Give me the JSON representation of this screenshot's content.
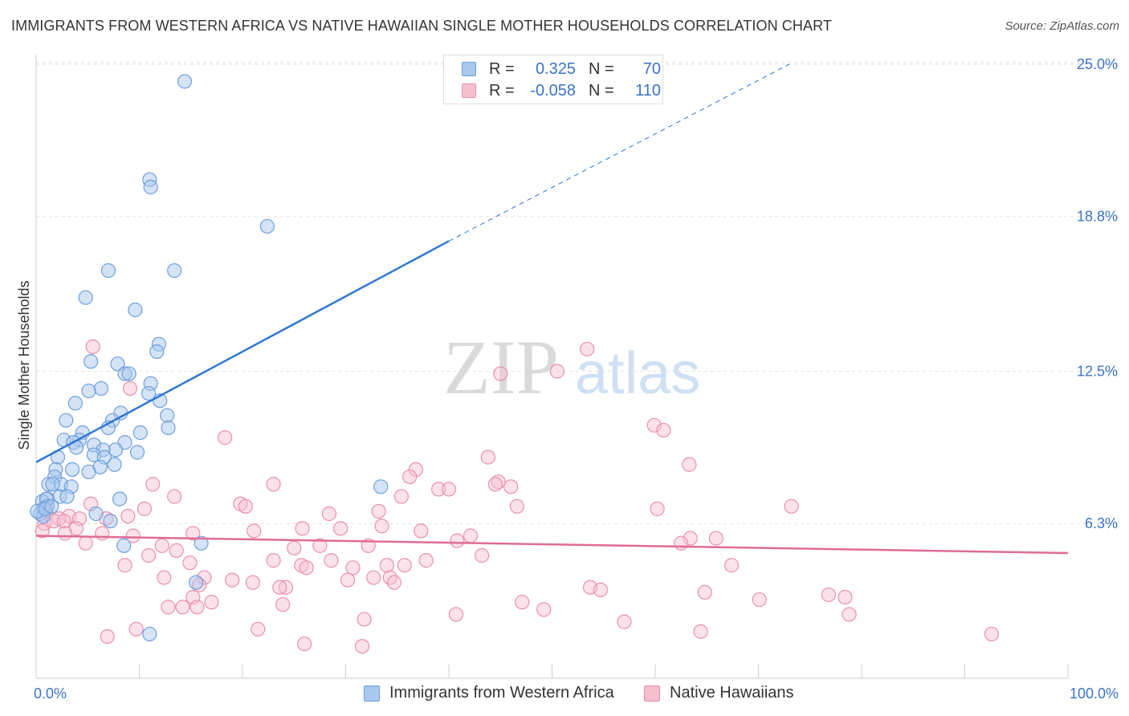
{
  "header": {
    "title": "IMMIGRANTS FROM WESTERN AFRICA VS NATIVE HAWAIIAN SINGLE MOTHER HOUSEHOLDS CORRELATION CHART",
    "source": "Source: ZipAtlas.com"
  },
  "legend": {
    "blue": {
      "r_label": "R =",
      "r_value": "0.325",
      "n_label": "N =",
      "n_value": "70"
    },
    "pink": {
      "r_label": "R =",
      "r_value": "-0.058",
      "n_label": "N =",
      "n_value": "110"
    }
  },
  "bottom_legend": {
    "blue_label": "Immigrants from Western Africa",
    "pink_label": "Native Hawaiians"
  },
  "watermark": {
    "zip": "ZIP",
    "atlas": "atlas"
  },
  "colors": {
    "blue_fill": "#aac8ee",
    "blue_stroke": "#6f9fdc",
    "blue_line": "#2f77d0",
    "pink_fill": "#f6bfd0",
    "pink_stroke": "#ea8fae",
    "pink_line": "#e06b96",
    "axis_label": "#3b73c7",
    "grid": "#e2e2e2"
  },
  "chart_data": {
    "type": "scatter",
    "title": "IMMIGRANTS FROM WESTERN AFRICA VS NATIVE HAWAIIAN SINGLE MOTHER HOUSEHOLDS CORRELATION CHART",
    "xlabel": "",
    "ylabel": "Single Mother Households",
    "xlim": [
      0,
      100
    ],
    "ylim": [
      0,
      26
    ],
    "x_tick_labels": [
      "0.0%",
      "100.0%"
    ],
    "y_ticks": [
      6.3,
      12.5,
      18.8,
      25.0
    ],
    "y_tick_labels": [
      "6.3%",
      "12.5%",
      "18.8%",
      "25.0%"
    ],
    "grid": true,
    "legend_position": "top-center",
    "series": [
      {
        "name": "Immigrants from Western Africa",
        "color": "#6f9fdc",
        "r": 0.325,
        "n": 70,
        "trend": {
          "x": [
            0,
            40
          ],
          "y": [
            8.8,
            17.8
          ],
          "dashed_to": [
            73,
            25.0
          ]
        },
        "points": [
          [
            14.4,
            24.3
          ],
          [
            11.0,
            20.3
          ],
          [
            11.1,
            20.0
          ],
          [
            22.4,
            18.4
          ],
          [
            7.0,
            16.6
          ],
          [
            13.4,
            16.6
          ],
          [
            4.8,
            15.5
          ],
          [
            9.6,
            15.0
          ],
          [
            11.9,
            13.6
          ],
          [
            11.7,
            13.3
          ],
          [
            5.3,
            12.9
          ],
          [
            7.9,
            12.8
          ],
          [
            8.6,
            12.4
          ],
          [
            9.0,
            12.4
          ],
          [
            11.1,
            12.0
          ],
          [
            6.3,
            11.8
          ],
          [
            5.1,
            11.7
          ],
          [
            10.9,
            11.6
          ],
          [
            3.8,
            11.2
          ],
          [
            12.0,
            11.3
          ],
          [
            8.2,
            10.8
          ],
          [
            12.7,
            10.7
          ],
          [
            2.9,
            10.5
          ],
          [
            7.4,
            10.5
          ],
          [
            12.8,
            10.2
          ],
          [
            7.0,
            10.2
          ],
          [
            10.1,
            10.0
          ],
          [
            4.5,
            10.0
          ],
          [
            2.7,
            9.7
          ],
          [
            4.2,
            9.7
          ],
          [
            3.6,
            9.6
          ],
          [
            5.6,
            9.5
          ],
          [
            3.9,
            9.4
          ],
          [
            8.6,
            9.6
          ],
          [
            7.7,
            9.3
          ],
          [
            6.5,
            9.3
          ],
          [
            5.6,
            9.1
          ],
          [
            9.8,
            9.2
          ],
          [
            6.6,
            9.0
          ],
          [
            2.1,
            9.0
          ],
          [
            7.6,
            8.7
          ],
          [
            6.2,
            8.6
          ],
          [
            1.9,
            8.5
          ],
          [
            3.5,
            8.5
          ],
          [
            5.1,
            8.4
          ],
          [
            1.8,
            8.2
          ],
          [
            2.4,
            7.9
          ],
          [
            1.2,
            7.9
          ],
          [
            1.6,
            7.9
          ],
          [
            3.4,
            7.8
          ],
          [
            33.4,
            7.8
          ],
          [
            1.1,
            7.3
          ],
          [
            2.3,
            7.4
          ],
          [
            3.0,
            7.4
          ],
          [
            8.1,
            7.3
          ],
          [
            0.6,
            7.2
          ],
          [
            1.0,
            7.3
          ],
          [
            1.1,
            7.0
          ],
          [
            0.7,
            6.9
          ],
          [
            0.4,
            6.7
          ],
          [
            0.7,
            6.6
          ],
          [
            0.1,
            6.8
          ],
          [
            5.8,
            6.7
          ],
          [
            7.2,
            6.4
          ],
          [
            8.5,
            5.4
          ],
          [
            16.0,
            5.5
          ],
          [
            15.5,
            3.9
          ],
          [
            11.0,
            1.8
          ],
          [
            0.9,
            6.9
          ],
          [
            1.5,
            7.0
          ]
        ]
      },
      {
        "name": "Native Hawaiians",
        "color": "#ea8fae",
        "r": -0.058,
        "n": 110,
        "trend": {
          "x": [
            0,
            100
          ],
          "y": [
            5.8,
            5.1
          ]
        },
        "points": [
          [
            53.4,
            13.4
          ],
          [
            5.5,
            13.5
          ],
          [
            45.0,
            12.4
          ],
          [
            50.5,
            12.5
          ],
          [
            9.1,
            11.8
          ],
          [
            59.9,
            10.3
          ],
          [
            60.8,
            10.1
          ],
          [
            18.3,
            9.8
          ],
          [
            43.8,
            9.0
          ],
          [
            63.3,
            8.7
          ],
          [
            36.8,
            8.5
          ],
          [
            36.2,
            8.2
          ],
          [
            44.8,
            8.0
          ],
          [
            44.5,
            7.9
          ],
          [
            11.3,
            7.9
          ],
          [
            23.0,
            7.9
          ],
          [
            46.0,
            7.8
          ],
          [
            39.0,
            7.7
          ],
          [
            40.0,
            7.7
          ],
          [
            35.4,
            7.4
          ],
          [
            13.4,
            7.4
          ],
          [
            33.2,
            6.8
          ],
          [
            5.3,
            7.1
          ],
          [
            19.8,
            7.1
          ],
          [
            20.3,
            7.0
          ],
          [
            46.6,
            7.0
          ],
          [
            60.2,
            6.9
          ],
          [
            73.2,
            7.0
          ],
          [
            28.4,
            6.7
          ],
          [
            10.5,
            6.9
          ],
          [
            1.0,
            6.7
          ],
          [
            3.2,
            6.6
          ],
          [
            4.2,
            6.5
          ],
          [
            6.8,
            6.5
          ],
          [
            8.9,
            6.6
          ],
          [
            2.2,
            6.5
          ],
          [
            0.8,
            6.3
          ],
          [
            0.6,
            6.0
          ],
          [
            1.7,
            6.4
          ],
          [
            2.7,
            6.4
          ],
          [
            21.1,
            6.0
          ],
          [
            25.8,
            6.1
          ],
          [
            29.5,
            6.1
          ],
          [
            33.5,
            6.2
          ],
          [
            37.3,
            6.0
          ],
          [
            42.1,
            5.8
          ],
          [
            40.8,
            5.6
          ],
          [
            15.2,
            5.9
          ],
          [
            6.4,
            5.9
          ],
          [
            9.4,
            5.8
          ],
          [
            63.4,
            5.7
          ],
          [
            65.9,
            5.7
          ],
          [
            62.5,
            5.5
          ],
          [
            32.2,
            5.4
          ],
          [
            27.5,
            5.4
          ],
          [
            25.0,
            5.3
          ],
          [
            13.6,
            5.2
          ],
          [
            4.8,
            5.5
          ],
          [
            12.2,
            5.4
          ],
          [
            10.9,
            5.0
          ],
          [
            43.2,
            5.0
          ],
          [
            37.8,
            4.8
          ],
          [
            28.6,
            4.8
          ],
          [
            23.0,
            4.8
          ],
          [
            34.0,
            4.6
          ],
          [
            35.7,
            4.6
          ],
          [
            25.7,
            4.6
          ],
          [
            26.2,
            4.5
          ],
          [
            30.7,
            4.5
          ],
          [
            8.6,
            4.6
          ],
          [
            14.9,
            4.7
          ],
          [
            67.4,
            4.6
          ],
          [
            12.4,
            4.1
          ],
          [
            16.3,
            4.1
          ],
          [
            19.0,
            4.0
          ],
          [
            30.2,
            4.0
          ],
          [
            32.7,
            4.1
          ],
          [
            34.3,
            4.1
          ],
          [
            34.7,
            3.9
          ],
          [
            15.8,
            3.8
          ],
          [
            21.0,
            3.9
          ],
          [
            24.2,
            3.7
          ],
          [
            23.6,
            3.7
          ],
          [
            53.7,
            3.7
          ],
          [
            54.7,
            3.6
          ],
          [
            64.8,
            3.5
          ],
          [
            70.1,
            3.2
          ],
          [
            76.8,
            3.4
          ],
          [
            78.4,
            3.3
          ],
          [
            15.2,
            3.3
          ],
          [
            17.0,
            3.1
          ],
          [
            23.9,
            3.0
          ],
          [
            47.1,
            3.1
          ],
          [
            12.8,
            2.9
          ],
          [
            14.2,
            2.9
          ],
          [
            15.6,
            2.9
          ],
          [
            40.7,
            2.6
          ],
          [
            49.2,
            2.8
          ],
          [
            78.8,
            2.6
          ],
          [
            31.8,
            2.4
          ],
          [
            57.0,
            2.3
          ],
          [
            9.7,
            2.0
          ],
          [
            21.5,
            2.0
          ],
          [
            64.4,
            1.9
          ],
          [
            92.6,
            1.8
          ],
          [
            6.9,
            1.7
          ],
          [
            26.0,
            1.4
          ],
          [
            31.6,
            1.3
          ],
          [
            3.9,
            6.1
          ],
          [
            2.8,
            5.9
          ]
        ]
      }
    ]
  }
}
